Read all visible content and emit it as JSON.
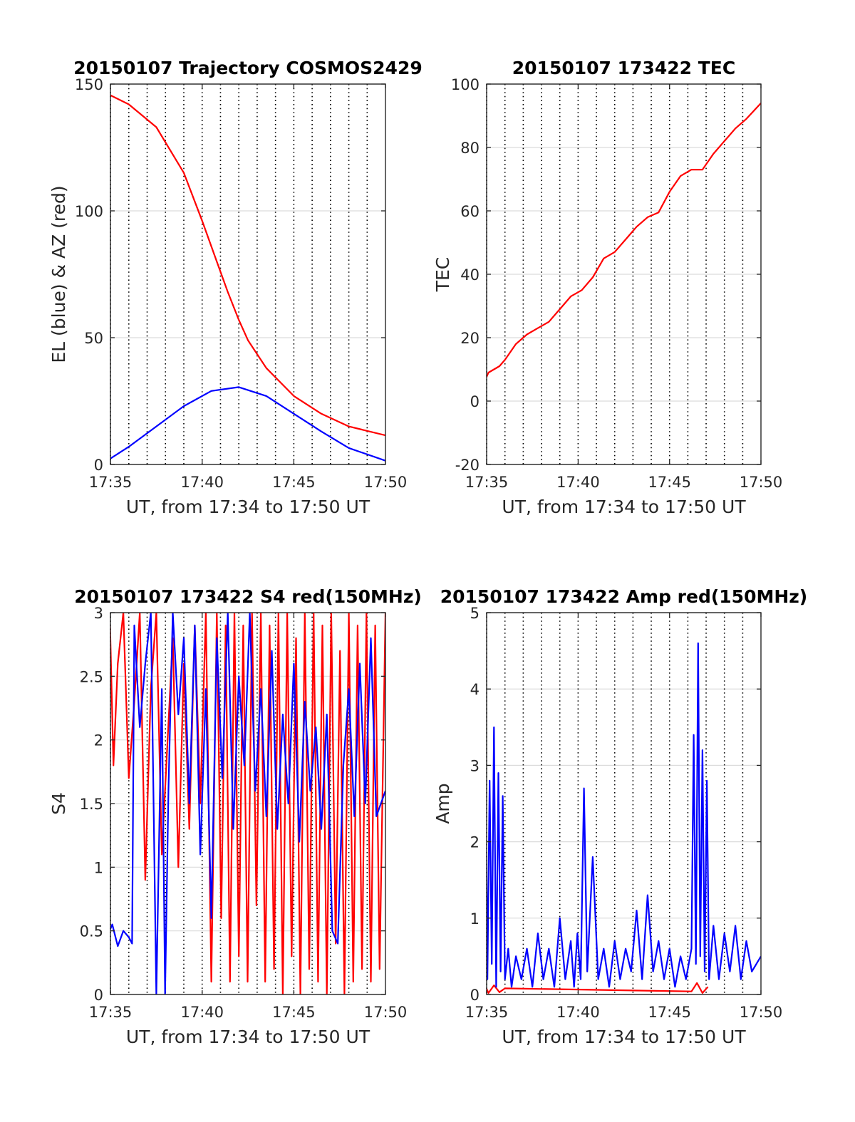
{
  "colors": {
    "el": "#0000ff",
    "az": "#ff0000",
    "tec": "#ff0000",
    "red": "#ff0000",
    "blue": "#0000ff"
  },
  "chart_data": [
    {
      "id": "trajectory",
      "type": "line",
      "title": "20150107 Trajectory COSMOS2429",
      "xlabel": "UT, from 17:34 to 17:50 UT",
      "ylabel": "EL (blue) & AZ (red)",
      "xlim": [
        17.5833,
        17.8333
      ],
      "ylim": [
        0,
        150
      ],
      "xticks": [
        17.5833,
        17.6667,
        17.75,
        17.8333
      ],
      "xtick_labels": [
        "17:35",
        "17:40",
        "17:45",
        "17:50"
      ],
      "yticks": [
        0,
        50,
        100,
        150
      ],
      "ytick_labels": [
        "0",
        "50",
        "100",
        "150"
      ],
      "series": [
        {
          "color": "#ff0000",
          "x": [
            17.5767,
            17.6,
            17.625,
            17.65,
            17.6667,
            17.68,
            17.69,
            17.7,
            17.7083,
            17.725,
            17.75,
            17.775,
            17.8,
            17.8333
          ],
          "y": [
            147,
            142,
            133,
            115,
            96,
            80,
            68,
            57,
            49,
            38,
            27,
            20,
            15,
            11.5
          ]
        },
        {
          "color": "#0000ff",
          "x": [
            17.5767,
            17.6,
            17.625,
            17.65,
            17.675,
            17.7,
            17.725,
            17.75,
            17.775,
            17.8,
            17.8333
          ],
          "y": [
            0.5,
            7,
            15,
            23,
            29,
            30.5,
            27,
            20,
            13,
            6.5,
            1.5
          ]
        }
      ]
    },
    {
      "id": "tec",
      "type": "line",
      "title": "20150107 173422 TEC",
      "xlabel": "UT, from 17:34 to 17:50 UT",
      "ylabel": "TEC",
      "xlim": [
        17.5833,
        17.8333
      ],
      "ylim": [
        -20,
        100
      ],
      "xticks": [
        17.5833,
        17.6667,
        17.75,
        17.8333
      ],
      "xtick_labels": [
        "17:35",
        "17:40",
        "17:45",
        "17:50"
      ],
      "yticks": [
        -20,
        0,
        20,
        40,
        60,
        80,
        100
      ],
      "ytick_labels": [
        "-20",
        "0",
        "20",
        "40",
        "60",
        "80",
        "100"
      ],
      "series": [
        {
          "color": "#ff0000",
          "x": [
            17.5767,
            17.58,
            17.585,
            17.595,
            17.6,
            17.61,
            17.62,
            17.63,
            17.64,
            17.65,
            17.66,
            17.67,
            17.68,
            17.69,
            17.7,
            17.71,
            17.72,
            17.73,
            17.74,
            17.75,
            17.76,
            17.77,
            17.78,
            17.79,
            17.8,
            17.81,
            17.82,
            17.8333
          ],
          "y": [
            -0.5,
            5,
            9,
            11,
            13,
            18,
            21,
            23,
            25,
            29,
            33,
            35,
            39,
            45,
            47,
            51,
            55,
            58,
            59.5,
            66,
            71,
            73,
            73,
            78,
            82,
            86,
            89,
            94
          ]
        }
      ]
    },
    {
      "id": "s4",
      "type": "line",
      "title": "20150107 173422 S4 red(150MHz)",
      "xlabel": "UT, from 17:34 to 17:50 UT",
      "ylabel": "S4",
      "xlim": [
        17.5833,
        17.8333
      ],
      "ylim": [
        0,
        3
      ],
      "xticks": [
        17.5833,
        17.6667,
        17.75,
        17.8333
      ],
      "xtick_labels": [
        "17:35",
        "17:40",
        "17:45",
        "17:50"
      ],
      "yticks": [
        0,
        0.5,
        1,
        1.5,
        2,
        2.5,
        3
      ],
      "ytick_labels": [
        "0",
        "0.5",
        "1",
        "1.5",
        "2",
        "2.5",
        "3"
      ],
      "series": [
        {
          "color": "#ff0000",
          "x": [
            17.5767,
            17.58,
            17.583,
            17.586,
            17.59,
            17.595,
            17.6,
            17.605,
            17.61,
            17.615,
            17.62,
            17.625,
            17.63,
            17.64,
            17.645,
            17.65,
            17.655,
            17.66,
            17.665,
            17.67,
            17.675,
            17.68,
            17.684,
            17.688,
            17.692,
            17.696,
            17.7,
            17.704,
            17.708,
            17.712,
            17.716,
            17.72,
            17.724,
            17.728,
            17.732,
            17.736,
            17.74,
            17.744,
            17.748,
            17.752,
            17.756,
            17.76,
            17.764,
            17.768,
            17.772,
            17.776,
            17.78,
            17.784,
            17.788,
            17.792,
            17.796,
            17.8,
            17.804,
            17.808,
            17.812,
            17.816,
            17.82,
            17.824,
            17.828,
            17.8333
          ],
          "y": [
            2.4,
            1.4,
            2.9,
            1.8,
            2.6,
            3,
            1.7,
            2.3,
            3,
            0.9,
            2.4,
            3,
            1.1,
            2.8,
            1.0,
            2.6,
            1.3,
            2.9,
            1.5,
            3,
            0.1,
            3,
            0.6,
            2.9,
            0.1,
            3,
            0.3,
            2.9,
            0.1,
            3,
            0.7,
            3,
            0.1,
            2.9,
            0.2,
            3,
            0.0,
            3,
            0.3,
            2.8,
            0.0,
            3,
            0.2,
            3,
            0.1,
            2.9,
            0.0,
            3,
            0.4,
            2.7,
            0.0,
            3,
            0.1,
            2.9,
            0.2,
            3,
            0.1,
            2.9,
            0.2,
            3
          ]
        },
        {
          "color": "#0000ff",
          "x": [
            17.5767,
            17.58,
            17.585,
            17.59,
            17.595,
            17.6,
            17.603,
            17.605,
            17.61,
            17.615,
            17.62,
            17.625,
            17.63,
            17.633,
            17.636,
            17.64,
            17.645,
            17.65,
            17.655,
            17.66,
            17.665,
            17.67,
            17.675,
            17.68,
            17.685,
            17.69,
            17.695,
            17.7,
            17.705,
            17.71,
            17.715,
            17.72,
            17.725,
            17.73,
            17.735,
            17.74,
            17.745,
            17.75,
            17.755,
            17.76,
            17.765,
            17.77,
            17.775,
            17.78,
            17.785,
            17.79,
            17.795,
            17.8,
            17.805,
            17.81,
            17.815,
            17.82,
            17.825,
            17.8333
          ],
          "y": [
            0.4,
            0.45,
            0.55,
            0.38,
            0.5,
            0.45,
            0.4,
            2.9,
            2.1,
            2.6,
            3,
            0,
            2.4,
            0,
            1.6,
            3,
            2.2,
            2.8,
            1.5,
            2.9,
            1.1,
            2.4,
            0.6,
            2.8,
            1.7,
            3,
            1.3,
            2.5,
            1.8,
            3,
            1.6,
            2.4,
            1.4,
            2.7,
            1.3,
            2.2,
            1.5,
            2.6,
            1.2,
            2.3,
            1.6,
            2.1,
            1.3,
            2.2,
            0.5,
            0.4,
            1.8,
            2.4,
            1.4,
            2.6,
            1.5,
            2.8,
            1.4,
            1.6
          ]
        }
      ]
    },
    {
      "id": "amp",
      "type": "line",
      "title": "20150107 173422 Amp red(150MHz)",
      "xlabel": "UT, from 17:34 to 17:50 UT",
      "ylabel": "Amp",
      "xlim": [
        17.5833,
        17.8333
      ],
      "ylim": [
        0,
        5
      ],
      "xticks": [
        17.5833,
        17.6667,
        17.75,
        17.8333
      ],
      "xtick_labels": [
        "17:35",
        "17:40",
        "17:45",
        "17:50"
      ],
      "yticks": [
        0,
        1,
        2,
        3,
        4,
        5
      ],
      "ytick_labels": [
        "0",
        "1",
        "2",
        "3",
        "4",
        "5"
      ],
      "series": [
        {
          "color": "#ff0000",
          "x": [
            17.5767,
            17.58,
            17.585,
            17.59,
            17.595,
            17.6,
            17.77,
            17.775,
            17.78,
            17.785
          ],
          "y": [
            0.05,
            0.18,
            0.02,
            0.12,
            0.03,
            0.08,
            0.04,
            0.15,
            0.02,
            0.1
          ]
        },
        {
          "color": "#0000ff",
          "x": [
            17.5767,
            17.578,
            17.58,
            17.582,
            17.584,
            17.586,
            17.588,
            17.59,
            17.592,
            17.594,
            17.596,
            17.598,
            17.6,
            17.603,
            17.606,
            17.61,
            17.615,
            17.62,
            17.625,
            17.63,
            17.635,
            17.64,
            17.645,
            17.65,
            17.655,
            17.66,
            17.663,
            17.666,
            17.669,
            17.672,
            17.675,
            17.68,
            17.685,
            17.69,
            17.695,
            17.7,
            17.705,
            17.71,
            17.715,
            17.72,
            17.725,
            17.73,
            17.735,
            17.74,
            17.745,
            17.75,
            17.755,
            17.76,
            17.765,
            17.77,
            17.772,
            17.774,
            17.776,
            17.778,
            17.78,
            17.782,
            17.784,
            17.786,
            17.79,
            17.795,
            17.8,
            17.805,
            17.81,
            17.815,
            17.82,
            17.825,
            17.8333
          ],
          "y": [
            0.1,
            3.1,
            0.3,
            3.7,
            0.2,
            2.8,
            0.4,
            3.5,
            0.1,
            2.9,
            0.3,
            2.6,
            0.2,
            0.6,
            0.1,
            0.5,
            0.2,
            0.6,
            0.1,
            0.8,
            0.2,
            0.6,
            0.1,
            1.0,
            0.2,
            0.7,
            0.1,
            0.8,
            0.2,
            2.7,
            0.3,
            1.8,
            0.2,
            0.6,
            0.1,
            0.7,
            0.2,
            0.6,
            0.3,
            1.1,
            0.2,
            1.3,
            0.3,
            0.7,
            0.2,
            0.6,
            0.1,
            0.5,
            0.2,
            0.6,
            3.4,
            0.4,
            4.6,
            0.5,
            3.2,
            0.3,
            2.8,
            0.2,
            0.9,
            0.2,
            0.8,
            0.3,
            0.9,
            0.2,
            0.7,
            0.3,
            0.5
          ]
        }
      ]
    }
  ]
}
